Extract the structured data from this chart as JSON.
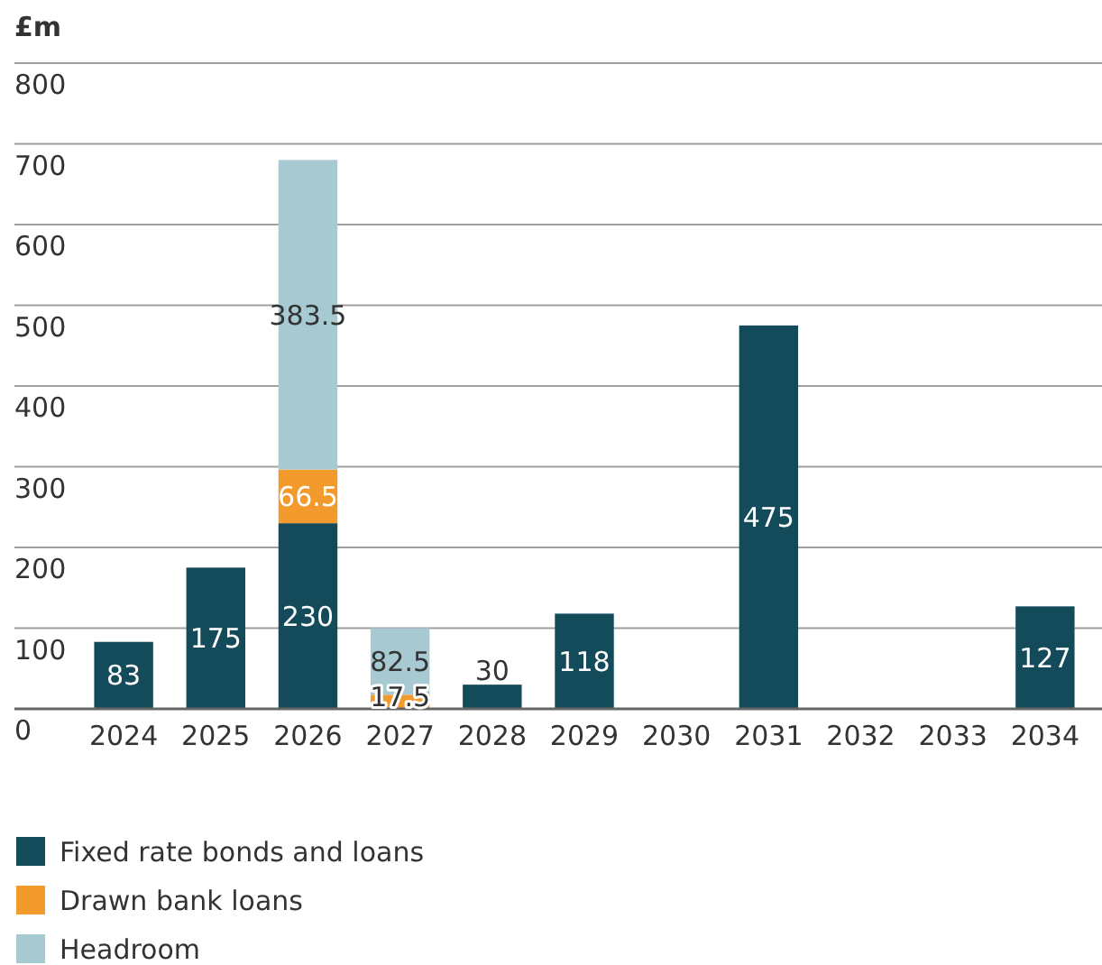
{
  "chart_data": {
    "type": "bar",
    "ylabel": "£m",
    "stacked": true,
    "data_labels": true,
    "grid": "y",
    "legend": "bottom left",
    "categories": [
      "2024",
      "2025",
      "2026",
      "2027",
      "2028",
      "2029",
      "2030",
      "2031",
      "2032",
      "2033",
      "2034"
    ],
    "series": [
      {
        "name": "Fixed rate bonds and loans",
        "color": "#134b5b",
        "values": [
          83,
          175,
          230,
          null,
          30,
          118,
          null,
          475,
          null,
          null,
          127
        ]
      },
      {
        "name": "Drawn bank loans",
        "color": "#f39a2d",
        "values": [
          null,
          null,
          66.5,
          17.5,
          null,
          null,
          null,
          null,
          null,
          null,
          null
        ]
      },
      {
        "name": "Headroom",
        "color": "#a6c9d2",
        "values": [
          null,
          null,
          383.5,
          82.5,
          null,
          null,
          null,
          null,
          null,
          null,
          null
        ]
      }
    ],
    "ylim": [
      0,
      800
    ],
    "yticks": [
      0,
      100,
      200,
      300,
      400,
      500,
      600,
      700,
      800
    ]
  }
}
